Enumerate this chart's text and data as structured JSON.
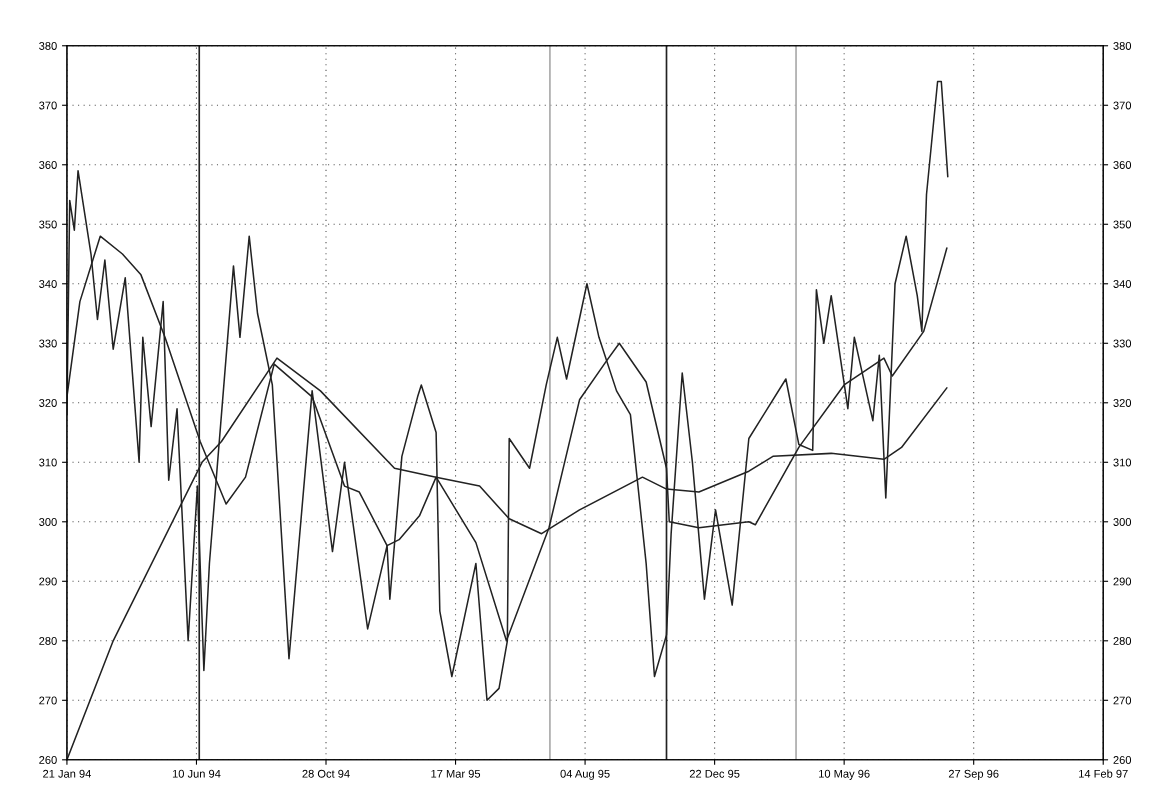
{
  "chart_data": {
    "type": "line",
    "grid": true,
    "line_style": "solid",
    "marker": "none",
    "xlim": [
      "1994-01-21",
      "1997-02-14"
    ],
    "xticks": [
      {
        "value": "1994-01-21",
        "label": "21 Jan 94"
      },
      {
        "value": "1994-06-10",
        "label": "10 Jun 94"
      },
      {
        "value": "1994-10-28",
        "label": "28 Oct 94"
      },
      {
        "value": "1995-03-17",
        "label": "17 Mar 95"
      },
      {
        "value": "1995-08-04",
        "label": "04 Aug 95"
      },
      {
        "value": "1995-12-22",
        "label": "22 Dec 95"
      },
      {
        "value": "1996-05-10",
        "label": "10 May 96"
      },
      {
        "value": "1996-09-27",
        "label": "27 Sep 96"
      },
      {
        "value": "1997-02-14",
        "label": "14 Feb 97"
      }
    ],
    "ylim": [
      260,
      380
    ],
    "yticks": [
      260,
      270,
      280,
      290,
      300,
      310,
      320,
      330,
      340,
      350,
      360,
      370,
      380
    ],
    "y2lim": [
      260,
      380
    ],
    "y2ticks": [
      260,
      270,
      280,
      290,
      300,
      310,
      320,
      330,
      340,
      350,
      360,
      370,
      380
    ],
    "series": [
      {
        "color": "#222222",
        "x": [
          "1994-01-21",
          "1994-01-24",
          "1994-01-29",
          "1994-02-02",
          "1994-02-09",
          "1994-02-16",
          "1994-02-23",
          "1994-03-03",
          "1994-03-12",
          "1994-03-25",
          "1994-04-09",
          "1994-04-13",
          "1994-04-22",
          "1994-05-05",
          "1994-05-11",
          "1994-05-20",
          "1994-06-01",
          "1994-06-11",
          "1994-06-18",
          "1994-06-24",
          "1994-07-20",
          "1994-07-27",
          "1994-08-06",
          "1994-08-15",
          "1994-08-31",
          "1994-09-18",
          "1994-10-13",
          "1994-11-04",
          "1994-11-17",
          "1994-12-12",
          "1995-01-02",
          "1995-01-05",
          "1995-01-18",
          "1995-02-04",
          "1995-02-08",
          "1995-02-24",
          "1995-02-28",
          "1995-03-13",
          "1995-04-08",
          "1995-04-20",
          "1995-05-03",
          "1995-05-12",
          "1995-05-14",
          "1995-06-05",
          "1995-06-23",
          "1995-07-05",
          "1995-07-15",
          "1995-08-06",
          "1995-08-19",
          "1995-09-07",
          "1995-09-22",
          "1995-10-09",
          "1995-10-18",
          "1995-10-31",
          "1995-11-05",
          "1995-11-17",
          "1995-11-28",
          "1995-12-11",
          "1995-12-23",
          "1996-01-10",
          "1996-01-28",
          "1996-03-08",
          "1996-03-22",
          "1996-04-06",
          "1996-04-10",
          "1996-04-18",
          "1996-04-26",
          "1996-05-14",
          "1996-05-21",
          "1996-06-10",
          "1996-06-17",
          "1996-06-24",
          "1996-07-04",
          "1996-07-16",
          "1996-07-28",
          "1996-08-02",
          "1996-08-07",
          "1996-08-19",
          "1996-08-23",
          "1996-08-30"
        ],
        "values": [
          318,
          354,
          349,
          359,
          352,
          345,
          334,
          344,
          329,
          341,
          310,
          331,
          316,
          337,
          307,
          319,
          280,
          306,
          275,
          293,
          343,
          331,
          348,
          335,
          323,
          277,
          322,
          295,
          310,
          282,
          296,
          287,
          311,
          321,
          323,
          315,
          285,
          274,
          293,
          270,
          272,
          280,
          314,
          309,
          323,
          331,
          324,
          340,
          331,
          322,
          318,
          293,
          274,
          281,
          298,
          325,
          310,
          287,
          302,
          286,
          314,
          324,
          313,
          312,
          339,
          330,
          338,
          319,
          331,
          317,
          328,
          304,
          340,
          348,
          338,
          332,
          355,
          374,
          374,
          358
        ]
      },
      {
        "color": "#222222",
        "x": [
          "1994-01-21",
          "1994-02-04",
          "1994-02-26",
          "1994-03-22",
          "1994-04-11",
          "1994-05-07",
          "1994-06-14",
          "1994-07-12",
          "1994-08-02",
          "1994-09-02",
          "1994-10-13",
          "1994-11-17",
          "1994-12-03",
          "1995-01-02",
          "1995-01-15",
          "1995-02-06",
          "1995-02-24",
          "1995-04-08",
          "1995-05-11",
          "1995-06-26",
          "1995-07-29",
          "1995-08-27",
          "1995-09-10",
          "1995-10-09",
          "1995-10-31",
          "1995-11-03",
          "1995-12-05",
          "1996-01-28",
          "1996-02-04",
          "1996-03-22",
          "1996-05-10",
          "1996-06-22",
          "1996-07-01",
          "1996-08-04",
          "1996-08-29"
        ],
        "values": [
          321,
          337,
          348,
          345,
          341.5,
          331,
          313.5,
          303,
          307.5,
          326.5,
          321,
          306,
          305,
          296,
          297,
          301,
          307.5,
          296.5,
          280,
          299,
          320.5,
          327,
          330,
          323.5,
          309,
          300,
          299,
          300,
          299.5,
          312.5,
          323,
          327.5,
          324.5,
          332,
          346
        ]
      },
      {
        "color": "#222222",
        "x": [
          "1994-01-21",
          "1994-03-12",
          "1994-06-16",
          "1994-07-07",
          "1994-09-05",
          "1994-10-22",
          "1995-01-10",
          "1995-02-24",
          "1995-04-12",
          "1995-05-14",
          "1995-06-18",
          "1995-07-29",
          "1995-10-05",
          "1995-10-31",
          "1995-12-05",
          "1996-01-28",
          "1996-02-23",
          "1996-04-26",
          "1996-06-22",
          "1996-07-11",
          "1996-08-29"
        ],
        "values": [
          260,
          280,
          310,
          313.5,
          327.5,
          322,
          309,
          307.5,
          306,
          300.5,
          298,
          302,
          307.5,
          305.5,
          305,
          308.5,
          311,
          311.5,
          310.5,
          312.5,
          322.5
        ]
      }
    ],
    "ref_lines": [
      {
        "axis": "x",
        "value": "1994-06-13",
        "color": "#222222"
      },
      {
        "axis": "x",
        "value": "1995-06-27",
        "color": "#aaaaaa"
      },
      {
        "axis": "x",
        "value": "1995-10-31",
        "color": "#222222"
      },
      {
        "axis": "x",
        "value": "1996-03-19",
        "color": "#aaaaaa"
      }
    ]
  }
}
